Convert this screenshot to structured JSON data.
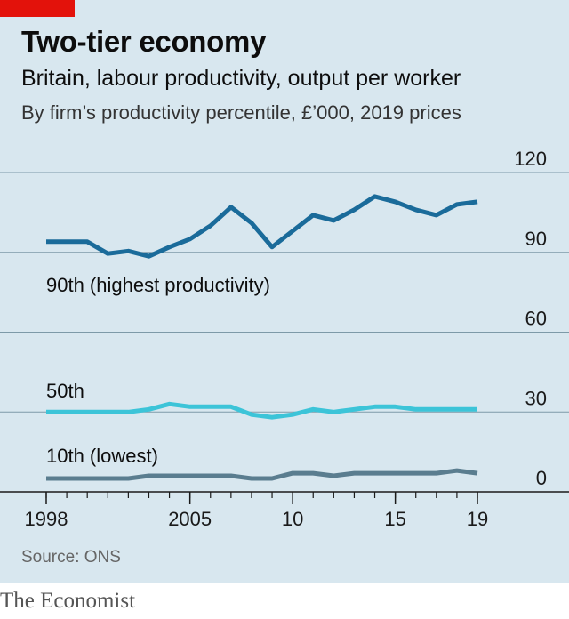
{
  "header": {
    "title": "Two-tier economy",
    "subtitle": "Britain, labour productivity, output per worker",
    "note": "By firm’s productivity percentile, £’000, 2019 prices"
  },
  "footer": {
    "source": "Source: ONS",
    "brand": "The Economist"
  },
  "colors": {
    "background": "#d8e7ef",
    "accent": "#e3120b",
    "p90": "#1a6b9a",
    "p50": "#3cc4d8",
    "p10": "#5a7d8f",
    "grid": "#7d9aa8"
  },
  "chart_data": {
    "type": "line",
    "title": "Two-tier economy",
    "ylim": [
      0,
      120
    ],
    "grid": true,
    "x_tick_values": [
      1998,
      2005,
      2010,
      2015,
      2019
    ],
    "x_tick_labels": [
      "1998",
      "2005",
      "10",
      "15",
      "19"
    ],
    "y_ticks": [
      0,
      30,
      60,
      90,
      120
    ],
    "x": [
      1998,
      1999,
      2000,
      2001,
      2002,
      2003,
      2004,
      2005,
      2006,
      2007,
      2008,
      2009,
      2010,
      2011,
      2012,
      2013,
      2014,
      2015,
      2016,
      2017,
      2018,
      2019
    ],
    "series": [
      {
        "name": "90th (highest productivity)",
        "values": [
          94,
          94,
          94,
          89.5,
          90.5,
          88.5,
          92,
          95,
          100,
          107,
          101,
          92,
          98,
          104,
          102,
          106,
          111,
          109,
          106,
          104,
          108,
          109
        ]
      },
      {
        "name": "50th",
        "values": [
          30,
          30,
          30,
          30,
          30,
          31,
          33,
          32,
          32,
          32,
          29,
          28,
          29,
          31,
          30,
          31,
          32,
          32,
          31,
          31,
          31,
          31
        ]
      },
      {
        "name": "10th (lowest)",
        "values": [
          5,
          5,
          5,
          5,
          5,
          6,
          6,
          6,
          6,
          6,
          5,
          5,
          7,
          7,
          6,
          7,
          7,
          7,
          7,
          7,
          8,
          7
        ]
      }
    ]
  }
}
